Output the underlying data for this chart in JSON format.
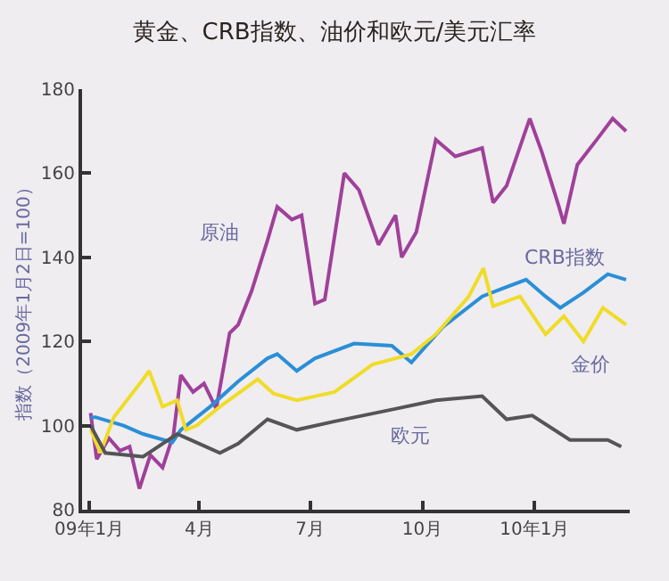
{
  "chart_data": {
    "type": "line",
    "title": "黄金、CRB指数、油价和欧元/美元汇率",
    "ylabel": "指数（2009年1月2日=100）",
    "xlim": [
      "2008-12-26",
      "2010-03-20"
    ],
    "xticks": [
      {
        "value": "2009-01-01",
        "label": "09年1月"
      },
      {
        "value": "2009-04-01",
        "label": "4月"
      },
      {
        "value": "2009-07-01",
        "label": "7月"
      },
      {
        "value": "2009-10-01",
        "label": "10月"
      },
      {
        "value": "2010-01-01",
        "label": "10年1月"
      }
    ],
    "ylim": [
      80,
      180
    ],
    "yticks": [
      80,
      100,
      120,
      140,
      160,
      180
    ],
    "grid": false,
    "legend": false,
    "series": [
      {
        "name": "原油",
        "color": "#a0409a",
        "x": [
          "2009-01-02",
          "2009-01-07",
          "2009-01-17",
          "2009-01-26",
          "2009-02-03",
          "2009-02-11",
          "2009-02-20",
          "2009-03-02",
          "2009-03-11",
          "2009-03-17",
          "2009-03-27",
          "2009-04-05",
          "2009-04-15",
          "2009-04-26",
          "2009-05-03",
          "2009-05-14",
          "2009-05-27",
          "2009-06-04",
          "2009-06-16",
          "2009-06-24",
          "2009-07-05",
          "2009-07-13",
          "2009-07-29",
          "2009-08-10",
          "2009-08-26",
          "2009-09-09",
          "2009-09-14",
          "2009-09-26",
          "2009-10-12",
          "2009-10-28",
          "2009-11-19",
          "2009-11-28",
          "2009-12-09",
          "2009-12-28",
          "2010-01-07",
          "2010-01-21",
          "2010-01-25",
          "2010-02-05",
          "2010-02-21",
          "2010-03-06",
          "2010-03-17"
        ],
        "values": [
          103,
          92,
          97,
          94,
          95,
          85,
          93,
          90,
          98,
          112,
          108,
          110,
          104,
          122,
          124,
          132,
          144,
          152,
          149,
          150,
          129,
          130,
          160,
          156,
          143,
          150,
          140,
          146,
          168,
          164,
          166,
          153,
          157,
          173,
          165,
          152,
          148,
          162,
          168,
          173,
          170
        ]
      },
      {
        "name": "CRB指数",
        "color": "#2a8fd6",
        "x": [
          "2009-01-02",
          "2009-01-06",
          "2009-01-29",
          "2009-02-14",
          "2009-03-10",
          "2009-03-17",
          "2009-04-10",
          "2009-05-03",
          "2009-05-27",
          "2009-06-04",
          "2009-06-20",
          "2009-07-05",
          "2009-08-06",
          "2009-09-06",
          "2009-09-22",
          "2009-10-18",
          "2009-11-19",
          "2009-12-05",
          "2009-12-25",
          "2010-01-10",
          "2010-01-22",
          "2010-02-10",
          "2010-03-02",
          "2010-03-17"
        ],
        "values": [
          102,
          102,
          100,
          98,
          96,
          99,
          104.5,
          110.5,
          116,
          117,
          113,
          116,
          119.5,
          119,
          115,
          123.5,
          130.7,
          132.5,
          134.7,
          130.7,
          128,
          131.6,
          136,
          134.7
        ]
      },
      {
        "name": "金价",
        "color": "#f0dc28",
        "x": [
          "2009-01-02",
          "2009-01-10",
          "2009-01-21",
          "2009-02-14",
          "2009-02-19",
          "2009-03-02",
          "2009-03-14",
          "2009-03-21",
          "2009-03-30",
          "2009-04-18",
          "2009-05-19",
          "2009-06-01",
          "2009-06-20",
          "2009-07-21",
          "2009-08-21",
          "2009-09-22",
          "2009-10-12",
          "2009-11-08",
          "2009-11-20",
          "2009-11-28",
          "2009-12-20",
          "2010-01-10",
          "2010-01-25",
          "2010-02-10",
          "2010-02-26",
          "2010-03-17"
        ],
        "values": [
          99,
          93.5,
          102,
          111,
          113,
          104.5,
          106,
          99,
          100,
          104.5,
          111,
          107.6,
          106,
          108,
          114.5,
          117,
          121.7,
          130.7,
          137.4,
          128.4,
          130.7,
          121.7,
          126,
          120,
          128,
          124
        ]
      },
      {
        "name": "欧元",
        "color": "#555555",
        "x": [
          "2009-01-02",
          "2009-01-14",
          "2009-02-14",
          "2009-03-14",
          "2009-03-25",
          "2009-04-18",
          "2009-05-03",
          "2009-05-27",
          "2009-06-20",
          "2009-07-21",
          "2009-09-06",
          "2009-10-12",
          "2009-11-19",
          "2009-12-09",
          "2009-12-30",
          "2010-01-30",
          "2010-03-02",
          "2010-03-13"
        ],
        "values": [
          100,
          93.5,
          92.6,
          98,
          96.6,
          93.5,
          95.7,
          101.5,
          99,
          101,
          103.8,
          106,
          107,
          101.5,
          102.4,
          96.6,
          96.6,
          95
        ]
      }
    ]
  }
}
